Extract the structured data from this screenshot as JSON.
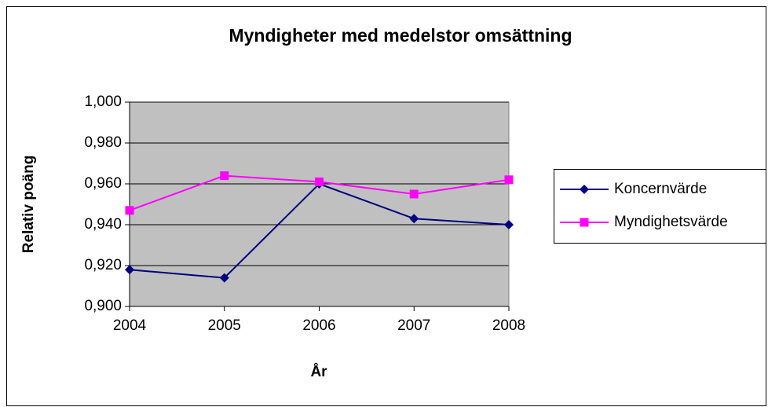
{
  "chart_data": {
    "type": "line",
    "title": "Myndigheter med medelstor omsättning",
    "x_label": "År",
    "y_label": "Relativ poäng",
    "categories": [
      "2004",
      "2005",
      "2006",
      "2007",
      "2008"
    ],
    "series": [
      {
        "name": "Koncernvärde",
        "color": "#000080",
        "marker": "diamond",
        "values": [
          0.918,
          0.914,
          0.96,
          0.943,
          0.94
        ]
      },
      {
        "name": "Myndighetsvärde",
        "color": "#ff00ff",
        "marker": "square",
        "values": [
          0.947,
          0.964,
          0.961,
          0.955,
          0.962
        ]
      }
    ],
    "ylim": [
      0.9,
      1.0
    ],
    "yticks": [
      {
        "value": 0.9,
        "label": "0,900"
      },
      {
        "value": 0.92,
        "label": "0,920"
      },
      {
        "value": 0.94,
        "label": "0,940"
      },
      {
        "value": 0.96,
        "label": "0,960"
      },
      {
        "value": 0.98,
        "label": "0,980"
      },
      {
        "value": 1.0,
        "label": "1,000"
      }
    ],
    "grid": true,
    "legend": "right"
  }
}
